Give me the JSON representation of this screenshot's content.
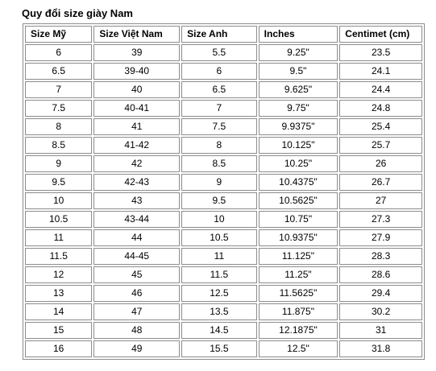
{
  "title": "Quy đổi size giày Nam",
  "columns": [
    "Size Mỹ",
    "Size Việt Nam",
    "Size Anh",
    "Inches",
    "Centimet (cm)"
  ],
  "rows": [
    [
      "6",
      "39",
      "5.5",
      "9.25\"",
      "23.5"
    ],
    [
      "6.5",
      "39-40",
      "6",
      "9.5\"",
      "24.1"
    ],
    [
      "7",
      "40",
      "6.5",
      "9.625\"",
      "24.4"
    ],
    [
      "7.5",
      "40-41",
      "7",
      "9.75\"",
      "24.8"
    ],
    [
      "8",
      "41",
      "7.5",
      "9.9375\"",
      "25.4"
    ],
    [
      "8.5",
      "41-42",
      "8",
      "10.125\"",
      "25.7"
    ],
    [
      "9",
      "42",
      "8.5",
      "10.25\"",
      "26"
    ],
    [
      "9.5",
      "42-43",
      "9",
      "10.4375\"",
      "26.7"
    ],
    [
      "10",
      "43",
      "9.5",
      "10.5625\"",
      "27"
    ],
    [
      "10.5",
      "43-44",
      "10",
      "10.75\"",
      "27.3"
    ],
    [
      "11",
      "44",
      "10.5",
      "10.9375\"",
      "27.9"
    ],
    [
      "11.5",
      "44-45",
      "11",
      "11.125\"",
      "28.3"
    ],
    [
      "12",
      "45",
      "11.5",
      "11.25\"",
      "28.6"
    ],
    [
      "13",
      "46",
      "12.5",
      "11.5625\"",
      "29.4"
    ],
    [
      "14",
      "47",
      "13.5",
      "11.875\"",
      "30.2"
    ],
    [
      "15",
      "48",
      "14.5",
      "12.1875\"",
      "31"
    ],
    [
      "16",
      "49",
      "15.5",
      "12.5\"",
      "31.8"
    ]
  ]
}
